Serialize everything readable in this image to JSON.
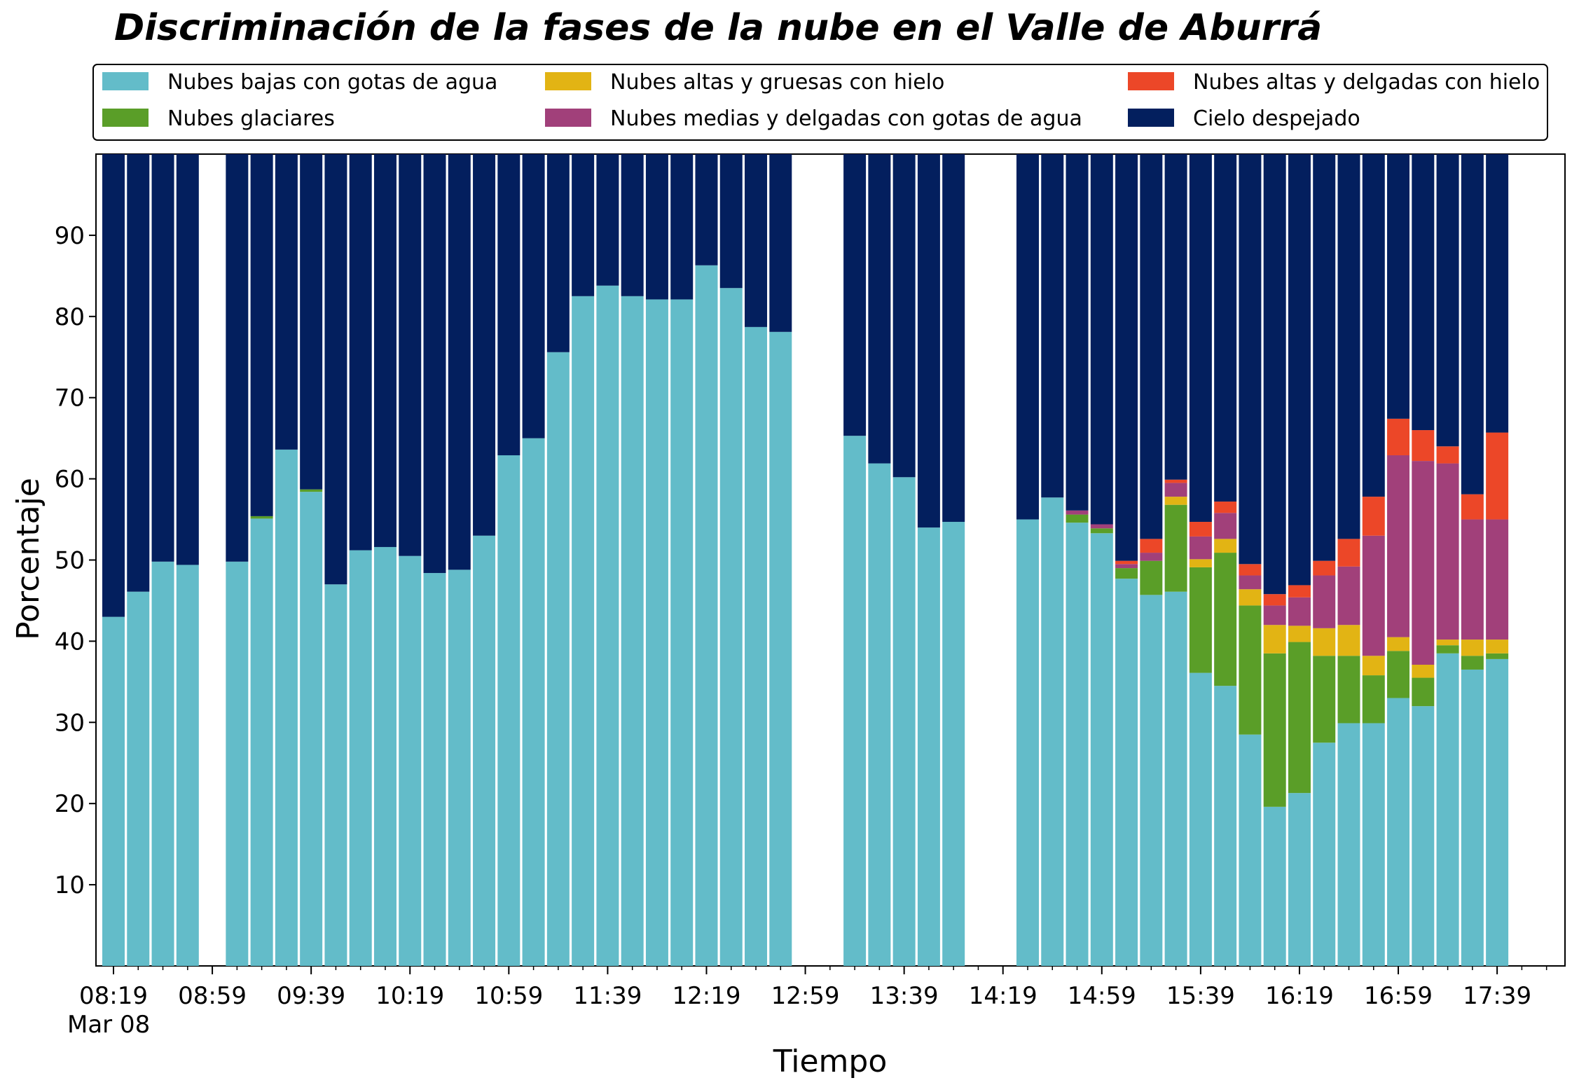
{
  "chart_data": {
    "type": "bar",
    "stacked": true,
    "title": "Discriminación de la fases de la nube en el Valle de Aburrá",
    "xlabel": "Tiempo",
    "ylabel": "Porcentaje",
    "ylim": [
      0,
      100
    ],
    "y_ticks": [
      10,
      20,
      30,
      40,
      50,
      60,
      70,
      80,
      90
    ],
    "x_tick_labels": [
      "08:19",
      "08:59",
      "09:39",
      "10:19",
      "10:59",
      "11:39",
      "12:19",
      "12:59",
      "13:39",
      "14:19",
      "14:59",
      "15:39",
      "16:19",
      "16:59",
      "17:39"
    ],
    "x_date_label": "Mar 08",
    "legend_placement": "top",
    "grid": false,
    "x_start": "08:19",
    "x_interval_minutes": 10,
    "slot_count": 59,
    "series": [
      {
        "name": "Nubes bajas con gotas de agua",
        "color": "#63bcc9"
      },
      {
        "name": "Nubes glaciares",
        "color": "#5a9e28"
      },
      {
        "name": "Nubes altas y gruesas con hielo",
        "color": "#e2b414"
      },
      {
        "name": "Nubes medias y delgadas con gotas de agua",
        "color": "#a1407a"
      },
      {
        "name": "Nubes altas y delgadas con hielo",
        "color": "#ec4728"
      },
      {
        "name": "Cielo despejado",
        "color": "#031f5e"
      }
    ],
    "bars": [
      {
        "t": "08:19",
        "values": [
          43,
          0,
          0,
          0,
          0,
          57
        ]
      },
      {
        "t": "08:29",
        "values": [
          46.1,
          0,
          0,
          0,
          0,
          53.9
        ]
      },
      {
        "t": "08:39",
        "values": [
          49.8,
          0,
          0,
          0,
          0,
          50.2
        ]
      },
      {
        "t": "08:49",
        "values": [
          49.4,
          0,
          0,
          0,
          0,
          50.6
        ]
      },
      {
        "t": "09:09",
        "values": [
          49.8,
          0,
          0,
          0,
          0,
          50.2
        ]
      },
      {
        "t": "09:19",
        "values": [
          55.1,
          0.3,
          0,
          0,
          0,
          44.6
        ]
      },
      {
        "t": "09:29",
        "values": [
          63.6,
          0,
          0,
          0,
          0,
          36.4
        ]
      },
      {
        "t": "09:39",
        "values": [
          58.4,
          0.3,
          0,
          0,
          0,
          41.3
        ]
      },
      {
        "t": "09:49",
        "values": [
          47,
          0,
          0,
          0,
          0,
          53
        ]
      },
      {
        "t": "09:59",
        "values": [
          51.2,
          0,
          0,
          0,
          0,
          48.8
        ]
      },
      {
        "t": "10:09",
        "values": [
          51.6,
          0,
          0,
          0,
          0,
          48.4
        ]
      },
      {
        "t": "10:19",
        "values": [
          50.5,
          0,
          0,
          0,
          0,
          49.5
        ]
      },
      {
        "t": "10:29",
        "values": [
          48.4,
          0,
          0,
          0,
          0,
          51.6
        ]
      },
      {
        "t": "10:39",
        "values": [
          48.8,
          0,
          0,
          0,
          0,
          51.2
        ]
      },
      {
        "t": "10:49",
        "values": [
          53,
          0,
          0,
          0,
          0,
          47
        ]
      },
      {
        "t": "10:59",
        "values": [
          62.9,
          0,
          0,
          0,
          0,
          37.1
        ]
      },
      {
        "t": "11:09",
        "values": [
          65,
          0,
          0,
          0,
          0,
          35
        ]
      },
      {
        "t": "11:19",
        "values": [
          75.6,
          0,
          0,
          0,
          0,
          24.4
        ]
      },
      {
        "t": "11:29",
        "values": [
          82.5,
          0,
          0,
          0,
          0,
          17.5
        ]
      },
      {
        "t": "11:39",
        "values": [
          83.8,
          0,
          0,
          0,
          0,
          16.2
        ]
      },
      {
        "t": "11:49",
        "values": [
          82.5,
          0,
          0,
          0,
          0,
          17.5
        ]
      },
      {
        "t": "11:59",
        "values": [
          82.1,
          0,
          0,
          0,
          0,
          17.9
        ]
      },
      {
        "t": "12:09",
        "values": [
          82.1,
          0,
          0,
          0,
          0,
          17.9
        ]
      },
      {
        "t": "12:19",
        "values": [
          86.3,
          0,
          0,
          0,
          0,
          13.7
        ]
      },
      {
        "t": "12:29",
        "values": [
          83.5,
          0,
          0,
          0,
          0,
          16.5
        ]
      },
      {
        "t": "12:39",
        "values": [
          78.7,
          0,
          0,
          0,
          0,
          21.3
        ]
      },
      {
        "t": "12:49",
        "values": [
          78.1,
          0,
          0,
          0,
          0,
          21.9
        ]
      },
      {
        "t": "13:19",
        "values": [
          65.3,
          0,
          0,
          0,
          0,
          34.7
        ]
      },
      {
        "t": "13:29",
        "values": [
          61.9,
          0,
          0,
          0,
          0,
          38.1
        ]
      },
      {
        "t": "13:39",
        "values": [
          60.2,
          0,
          0,
          0,
          0,
          39.8
        ]
      },
      {
        "t": "13:49",
        "values": [
          54,
          0,
          0,
          0,
          0,
          46
        ]
      },
      {
        "t": "13:59",
        "values": [
          54.7,
          0,
          0,
          0,
          0,
          45.3
        ]
      },
      {
        "t": "14:29",
        "values": [
          55,
          0,
          0,
          0,
          0,
          45
        ]
      },
      {
        "t": "14:39",
        "values": [
          57.7,
          0,
          0,
          0,
          0,
          42.3
        ]
      },
      {
        "t": "14:49",
        "values": [
          54.6,
          1,
          0,
          0.5,
          0,
          43.9
        ]
      },
      {
        "t": "14:59",
        "values": [
          53.3,
          0.6,
          0,
          0.5,
          0,
          45.6
        ]
      },
      {
        "t": "15:09",
        "values": [
          47.7,
          1.3,
          0,
          0.5,
          0.4,
          50.1
        ]
      },
      {
        "t": "15:19",
        "values": [
          45.7,
          4.2,
          0,
          1,
          1.7,
          47.4
        ]
      },
      {
        "t": "15:29",
        "values": [
          46.1,
          10.7,
          1,
          1.7,
          0.4,
          40.1
        ]
      },
      {
        "t": "15:39",
        "values": [
          36.1,
          13,
          1,
          2.8,
          1.8,
          45.3
        ]
      },
      {
        "t": "15:49",
        "values": [
          34.5,
          16.4,
          1.7,
          3.2,
          1.4,
          42.8
        ]
      },
      {
        "t": "15:59",
        "values": [
          28.5,
          15.9,
          2,
          1.7,
          1.4,
          50.5
        ]
      },
      {
        "t": "16:09",
        "values": [
          19.6,
          18.9,
          3.5,
          2.4,
          1.4,
          54.2
        ]
      },
      {
        "t": "16:19",
        "values": [
          21.3,
          18.6,
          2,
          3.5,
          1.5,
          53.1
        ]
      },
      {
        "t": "16:29",
        "values": [
          27.5,
          10.7,
          3.4,
          6.5,
          1.8,
          50.1
        ]
      },
      {
        "t": "16:39",
        "values": [
          29.9,
          8.3,
          3.8,
          7.2,
          3.4,
          47.4
        ]
      },
      {
        "t": "16:49",
        "values": [
          29.9,
          5.9,
          2.4,
          14.8,
          4.8,
          42.2
        ]
      },
      {
        "t": "16:59",
        "values": [
          33,
          5.8,
          1.7,
          22.4,
          4.5,
          32.6
        ]
      },
      {
        "t": "17:09",
        "values": [
          32,
          3.5,
          1.6,
          25.1,
          3.8,
          34
        ]
      },
      {
        "t": "17:19",
        "values": [
          38.5,
          1,
          0.7,
          21.7,
          2.1,
          36
        ]
      },
      {
        "t": "17:29",
        "values": [
          36.5,
          1.7,
          2,
          14.8,
          3.1,
          41.9
        ]
      },
      {
        "t": "17:39",
        "values": [
          37.8,
          0.7,
          1.7,
          14.8,
          10.7,
          34.3
        ]
      }
    ]
  }
}
